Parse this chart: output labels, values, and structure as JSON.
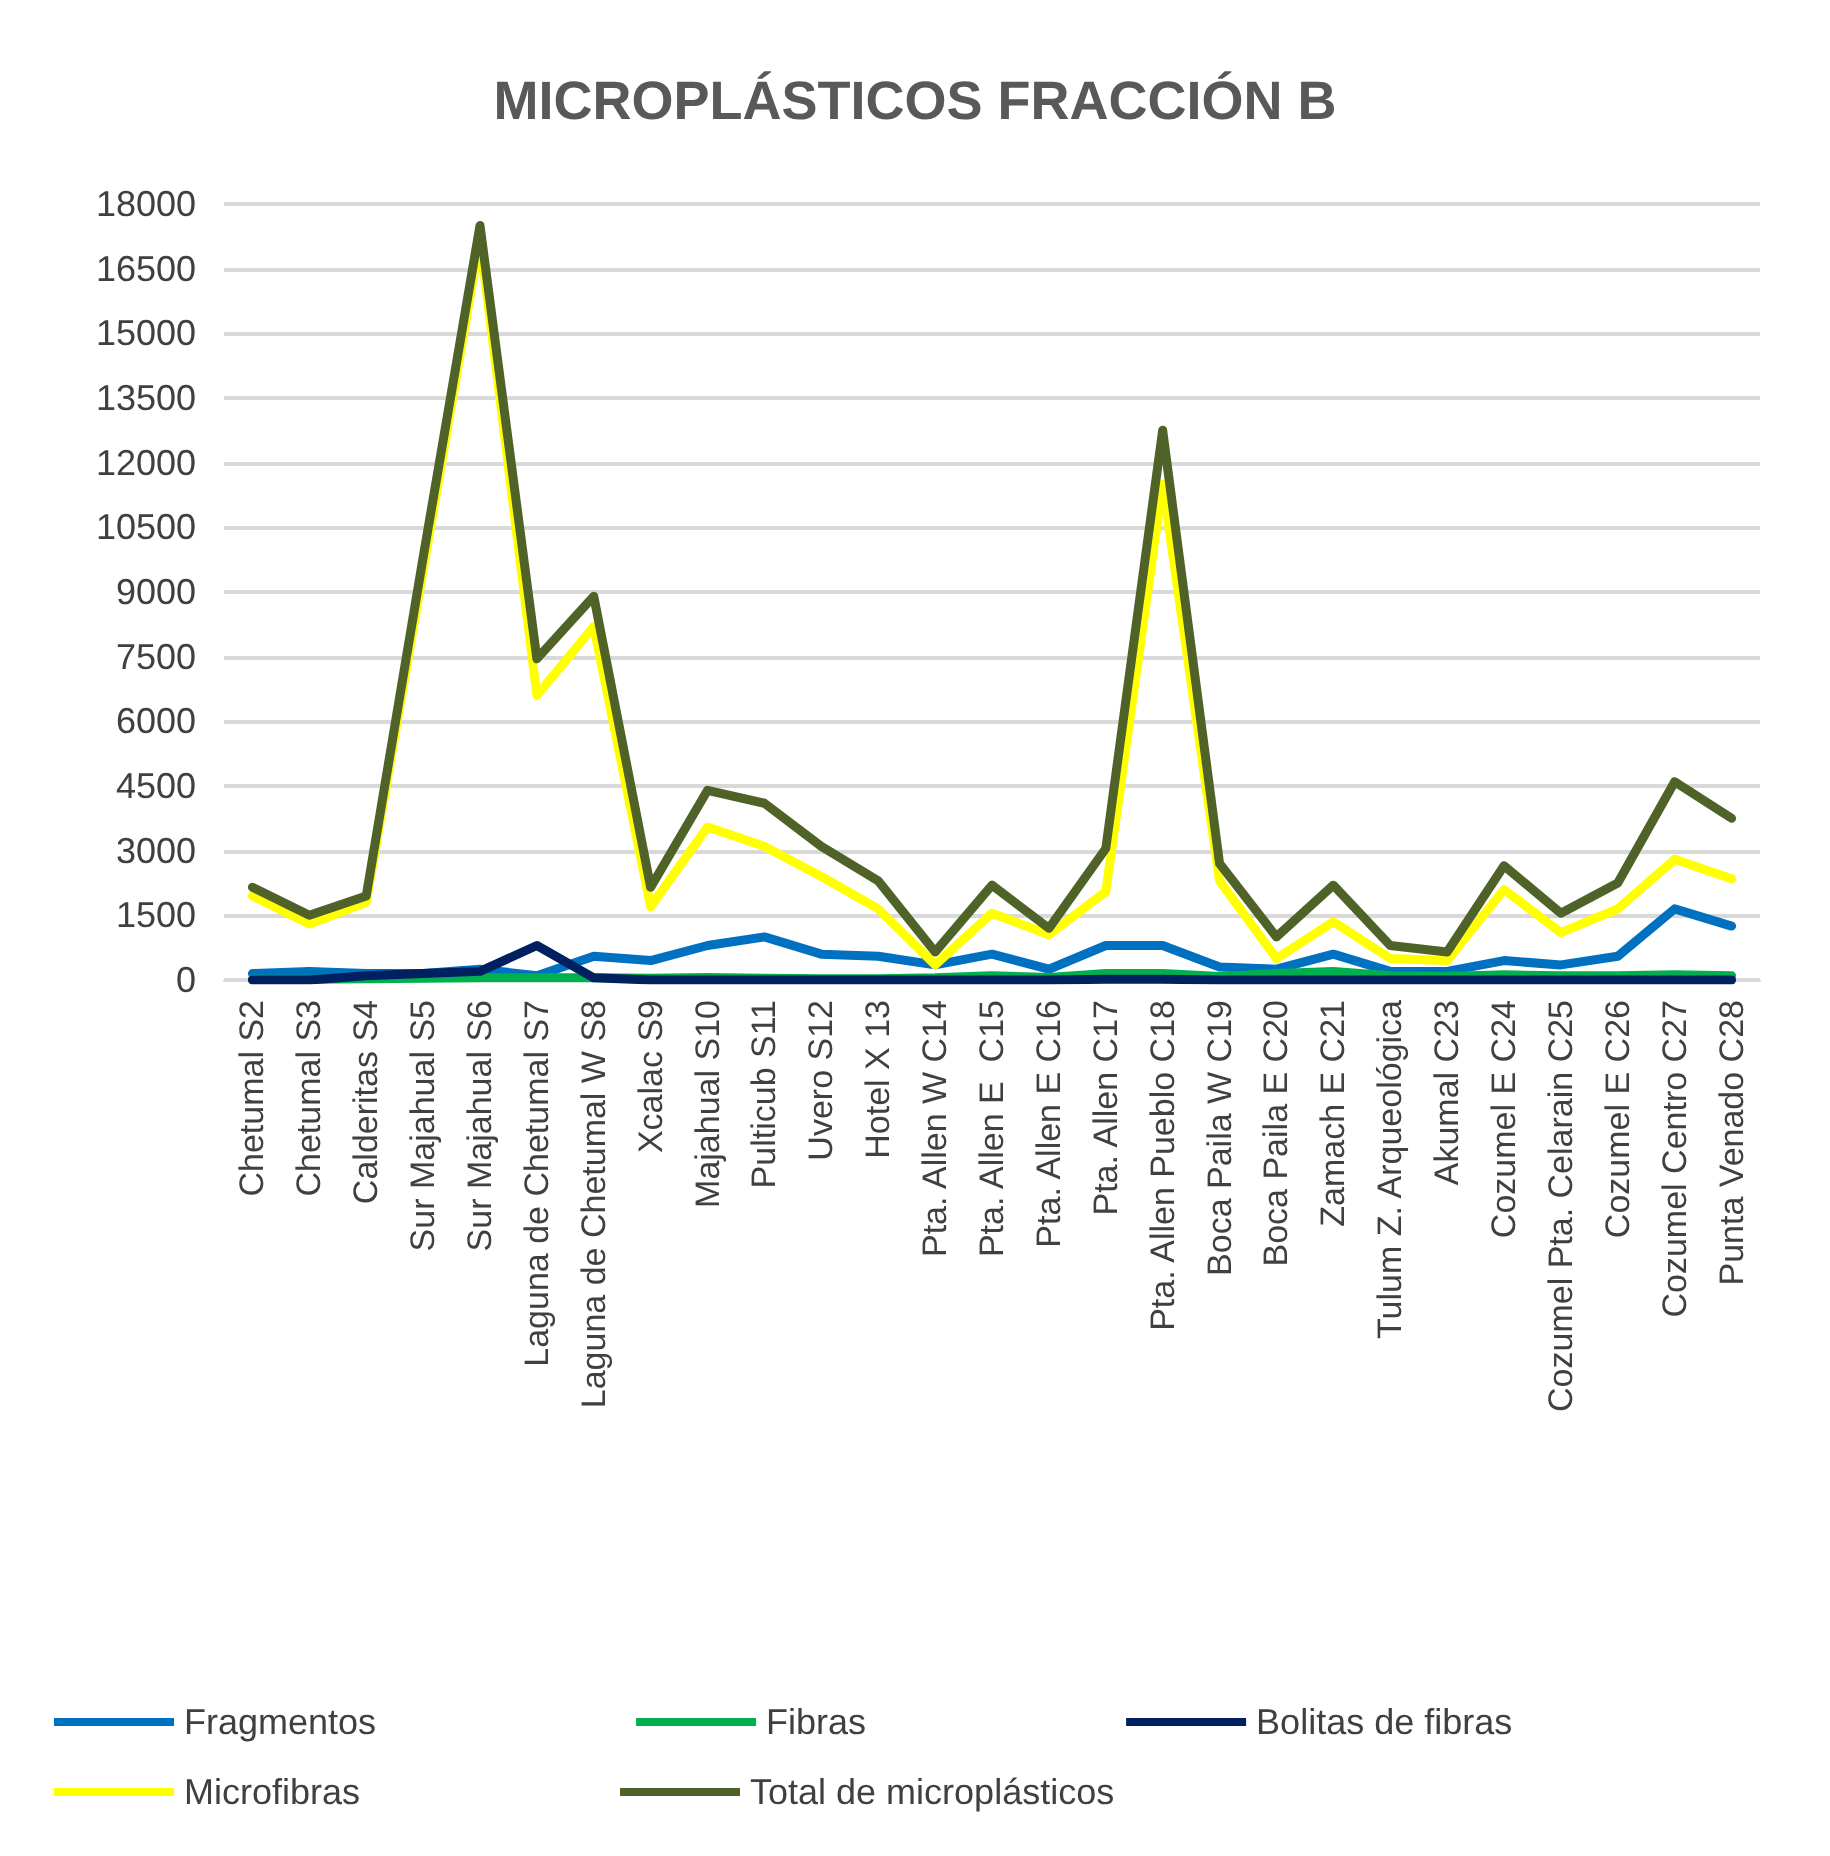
{
  "chart_data": {
    "type": "line",
    "title": "MICROPLÁSTICOS FRACCIÓN B",
    "categories": [
      "Chetumal S2",
      "Chetumal S3",
      "Calderitas S4",
      "Sur Majahual S5",
      "Sur Majahual S6",
      "Laguna de Chetumal S7",
      "Laguna de Chetumal W S8",
      "Xcalac S9",
      "Majahual S10",
      "Pulticub S11",
      "Uvero S12",
      "Hotel X 13",
      "Pta. Allen W C14",
      "Pta. Allen E  C15",
      "Pta. Allen E C16",
      "Pta. Allen C17",
      "Pta. Allen Pueblo C18",
      "Boca Paila W C19",
      "Boca Paila E C20",
      "Zamach E C21",
      "Tulum Z. Arqueológica",
      "Akumal C23",
      "Cozumel E C24",
      "Cozumel Pta. Celarain C25",
      "Cozumel E C26",
      "Cozumel Centro C27",
      "Punta Venado C28"
    ],
    "series": [
      {
        "name": "Fragmentos",
        "color": "#0070c0",
        "values": [
          150,
          200,
          150,
          150,
          250,
          100,
          550,
          450,
          800,
          1000,
          600,
          550,
          350,
          600,
          250,
          800,
          800,
          300,
          250,
          600,
          200,
          200,
          450,
          350,
          550,
          1650,
          1250
        ]
      },
      {
        "name": "Fibras",
        "color": "#00b050",
        "values": [
          20,
          20,
          30,
          40,
          50,
          50,
          50,
          40,
          60,
          40,
          30,
          30,
          50,
          100,
          60,
          150,
          150,
          80,
          150,
          200,
          100,
          80,
          120,
          100,
          100,
          120,
          100
        ]
      },
      {
        "name": "Bolitas de fibras",
        "color": "#002060",
        "values": [
          0,
          0,
          100,
          150,
          200,
          800,
          50,
          0,
          0,
          0,
          0,
          0,
          0,
          0,
          0,
          20,
          20,
          0,
          0,
          0,
          0,
          0,
          0,
          0,
          0,
          0,
          0
        ]
      },
      {
        "name": "Microfibras",
        "color": "#ffff00",
        "values": [
          1950,
          1300,
          1800,
          9500,
          17200,
          6600,
          8200,
          1700,
          3550,
          3100,
          2400,
          1650,
          350,
          1550,
          1050,
          2050,
          11500,
          2300,
          500,
          1350,
          500,
          450,
          2100,
          1100,
          1650,
          2800,
          2350
        ]
      },
      {
        "name": "Total de microplásticos",
        "color": "#4f6228",
        "values": [
          2150,
          1500,
          1950,
          9800,
          17500,
          7450,
          8900,
          2150,
          4400,
          4100,
          3100,
          2300,
          650,
          2200,
          1200,
          3050,
          12750,
          2700,
          1000,
          2200,
          800,
          650,
          2650,
          1550,
          2250,
          4600,
          3750
        ]
      }
    ],
    "ylim": [
      0,
      18000
    ],
    "yticks": [
      0,
      1500,
      3000,
      4500,
      6000,
      7500,
      9000,
      10500,
      12000,
      13500,
      15000,
      16500,
      18000
    ],
    "grid": "y",
    "legend": "bottom",
    "marker": "none",
    "line_style": "solid"
  }
}
